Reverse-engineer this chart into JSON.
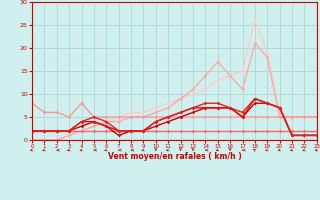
{
  "xlabel": "Vent moyen/en rafales ( km/h )",
  "xlim": [
    0,
    23
  ],
  "ylim": [
    0,
    30
  ],
  "yticks": [
    0,
    5,
    10,
    15,
    20,
    25,
    30
  ],
  "xticks": [
    0,
    1,
    2,
    3,
    4,
    5,
    6,
    7,
    8,
    9,
    10,
    11,
    12,
    13,
    14,
    15,
    16,
    17,
    18,
    19,
    20,
    21,
    22,
    23
  ],
  "bg_color": "#cff0ee",
  "grid_color": "#aacfcc",
  "lines": [
    {
      "x": [
        0,
        1,
        2,
        3,
        4,
        5,
        6,
        7,
        8,
        9,
        10,
        11,
        12,
        13,
        14,
        15,
        16,
        17,
        18,
        19,
        20,
        21,
        22,
        23
      ],
      "y": [
        0,
        0,
        0,
        1,
        2,
        3,
        4,
        5,
        6,
        6,
        7,
        8,
        9,
        10,
        11,
        13,
        14,
        15,
        26,
        19,
        6,
        5,
        5,
        5
      ],
      "color": "#ffcccc",
      "lw": 1.0,
      "marker": "D",
      "ms": 1.8
    },
    {
      "x": [
        0,
        1,
        2,
        3,
        4,
        5,
        6,
        7,
        8,
        9,
        10,
        11,
        12,
        13,
        14,
        15,
        16,
        17,
        18,
        19,
        20,
        21,
        22,
        23
      ],
      "y": [
        0,
        0,
        0,
        1,
        2,
        3,
        4,
        4,
        5,
        5,
        6,
        7,
        9,
        11,
        14,
        17,
        14,
        11,
        21,
        18,
        5,
        5,
        5,
        5
      ],
      "color": "#ffaaaa",
      "lw": 1.0,
      "marker": "D",
      "ms": 1.8
    },
    {
      "x": [
        0,
        1,
        2,
        3,
        4,
        5,
        6,
        7,
        8,
        9,
        10,
        11,
        12,
        13,
        14,
        15,
        16,
        17,
        18,
        19,
        20,
        21,
        22,
        23
      ],
      "y": [
        8,
        6,
        6,
        5,
        8,
        5,
        5,
        5,
        5,
        5,
        5,
        5,
        5,
        5,
        5,
        5,
        5,
        5,
        5,
        5,
        5,
        5,
        5,
        5
      ],
      "color": "#ff9999",
      "lw": 1.0,
      "marker": "D",
      "ms": 1.8
    },
    {
      "x": [
        0,
        1,
        2,
        3,
        4,
        5,
        6,
        7,
        8,
        9,
        10,
        11,
        12,
        13,
        14,
        15,
        16,
        17,
        18,
        19,
        20,
        21,
        22,
        23
      ],
      "y": [
        2,
        2,
        2,
        2,
        2,
        2,
        2,
        2,
        2,
        2,
        2,
        2,
        2,
        2,
        2,
        2,
        2,
        2,
        2,
        2,
        2,
        2,
        2,
        2
      ],
      "color": "#ff6666",
      "lw": 1.0,
      "marker": "D",
      "ms": 1.8
    },
    {
      "x": [
        0,
        1,
        2,
        3,
        4,
        5,
        6,
        7,
        8,
        9,
        10,
        11,
        12,
        13,
        14,
        15,
        16,
        17,
        18,
        19,
        20,
        21,
        22,
        23
      ],
      "y": [
        2,
        2,
        2,
        2,
        3,
        4,
        3,
        1,
        2,
        2,
        3,
        4,
        5,
        6,
        7,
        7,
        7,
        5,
        8,
        8,
        7,
        1,
        1,
        1
      ],
      "color": "#cc0000",
      "lw": 1.0,
      "marker": "D",
      "ms": 1.8
    },
    {
      "x": [
        0,
        1,
        2,
        3,
        4,
        5,
        6,
        7,
        8,
        9,
        10,
        11,
        12,
        13,
        14,
        15,
        16,
        17,
        18,
        19,
        20,
        21,
        22,
        23
      ],
      "y": [
        2,
        2,
        2,
        2,
        4,
        4,
        3,
        2,
        2,
        2,
        4,
        5,
        6,
        7,
        7,
        7,
        7,
        5,
        9,
        8,
        7,
        1,
        1,
        1
      ],
      "color": "#ff0000",
      "lw": 1.0,
      "marker": "D",
      "ms": 1.8
    },
    {
      "x": [
        0,
        1,
        2,
        3,
        4,
        5,
        6,
        7,
        8,
        9,
        10,
        11,
        12,
        13,
        14,
        15,
        16,
        17,
        18,
        19,
        20,
        21,
        22,
        23
      ],
      "y": [
        2,
        2,
        2,
        2,
        4,
        5,
        4,
        2,
        2,
        2,
        4,
        5,
        6,
        7,
        8,
        8,
        7,
        6,
        9,
        8,
        7,
        1,
        1,
        1
      ],
      "color": "#dd2222",
      "lw": 1.0,
      "marker": "D",
      "ms": 1.8
    }
  ],
  "arrow_angles": [
    225,
    225,
    270,
    225,
    225,
    270,
    225,
    270,
    270,
    225,
    180,
    225,
    180,
    180,
    270,
    225,
    180,
    270,
    315,
    225,
    225,
    225,
    225,
    225
  ]
}
